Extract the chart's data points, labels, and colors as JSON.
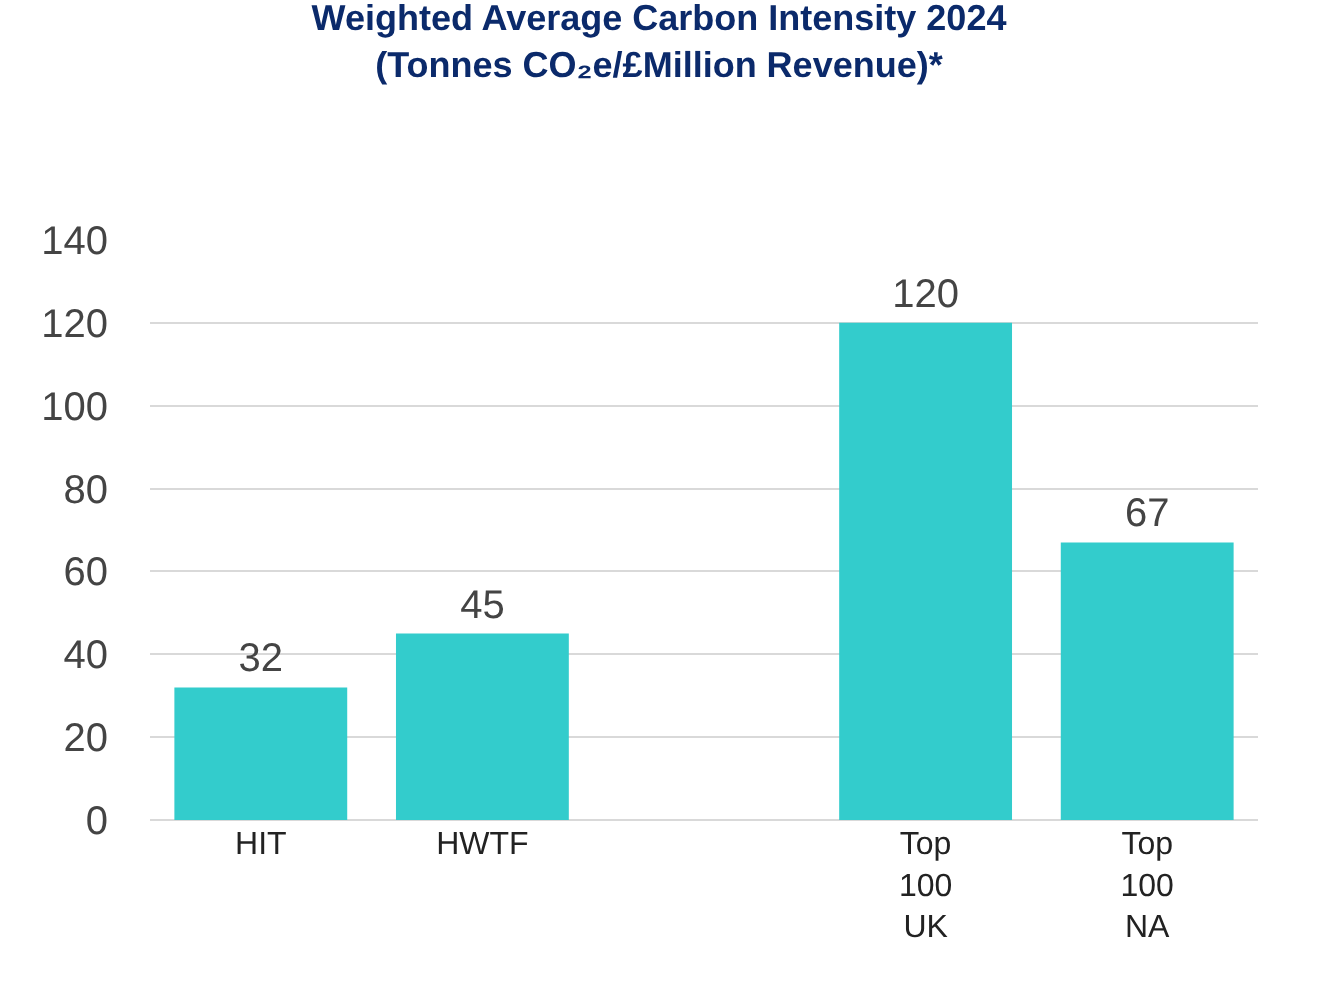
{
  "chart_data": {
    "type": "bar",
    "title": "Weighted Average Carbon Intensity 2024\n(Tonnes CO₂e/£Million Revenue)*",
    "categories": [
      "HIT",
      "HWTF",
      null,
      "Top 100 UK",
      "Top 100 NA"
    ],
    "values": [
      32,
      45,
      null,
      120,
      67
    ],
    "color": "#33cccc",
    "ylim": [
      0,
      140
    ],
    "yticks": [
      0,
      20,
      40,
      60,
      80,
      100,
      120,
      140
    ],
    "grid": "y",
    "data_labels": true
  }
}
